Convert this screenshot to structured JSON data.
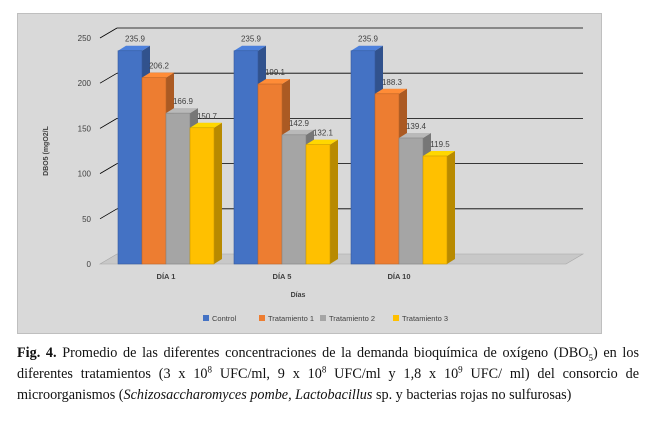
{
  "chart_data": {
    "type": "bar",
    "categories": [
      "DÍA 1",
      "DÍA 5",
      "DÍA 10"
    ],
    "series": [
      {
        "name": "Control",
        "values": [
          235.9,
          235.9,
          235.9
        ],
        "color": "#4472c4"
      },
      {
        "name": "Tratamiento 1",
        "values": [
          206.2,
          199.1,
          188.3
        ],
        "color": "#ed7d31"
      },
      {
        "name": "Tratamiento 2",
        "values": [
          166.9,
          142.9,
          139.4
        ],
        "color": "#a5a5a5"
      },
      {
        "name": "Tratamiento 3",
        "values": [
          150.7,
          132.1,
          119.5
        ],
        "color": "#ffc000"
      }
    ],
    "data_labels": [
      [
        "235.9",
        "235.9",
        "235.9"
      ],
      [
        "206.2",
        "199.1",
        "188.3"
      ],
      [
        "166.9",
        "142.9",
        "139.4"
      ],
      [
        "150.7",
        "132.1",
        "119.5"
      ]
    ],
    "ylabel": "DBO5 (mgO2/L",
    "xlabel": "Días",
    "ylim": [
      0,
      250
    ],
    "yticks": [
      "0",
      "50",
      "100",
      "150",
      "200",
      "250"
    ],
    "grid": true,
    "legend_position": "bottom",
    "style": "3d-clustered-column"
  },
  "caption": {
    "label": "Fig. 4.",
    "p1": " Promedio de las diferentes concentraciones de la demanda bioquímica de oxígeno (DBO",
    "sub5": "5",
    "p2": ") en los diferentes tratamientos (3 x 10",
    "sup1": "8",
    "p3": " UFC/ml, 9 x 10",
    "sup2": "8",
    "p4": " UFC/ml y 1,8 x 10",
    "sup3": "9",
    "p5": " UFC/ ml) del consorcio de microorganismos (",
    "italic": "Schizosaccharomyces pombe, Lactobacillus",
    "p6": " sp. y bacterias rojas no sulfurosas)"
  }
}
